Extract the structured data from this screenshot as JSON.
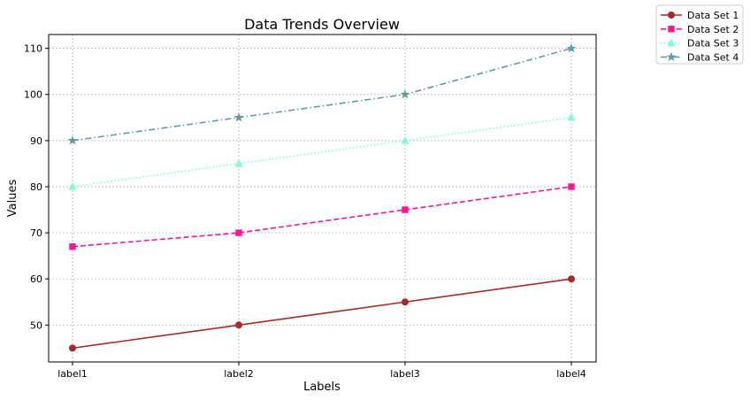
{
  "chart_data": {
    "type": "line",
    "title": "Data Trends Overview",
    "xlabel": "Labels",
    "ylabel": "Values",
    "categories": [
      "label1",
      "label2",
      "label3",
      "label4"
    ],
    "ylim": [
      42,
      113
    ],
    "yticks": [
      50,
      60,
      70,
      80,
      90,
      100,
      110
    ],
    "grid": true,
    "legend_position": "outside-top-right",
    "series": [
      {
        "name": "Data Set 1",
        "values": [
          45,
          50,
          55,
          60
        ],
        "color": "#a52a2a",
        "marker": "circle",
        "linestyle": "solid"
      },
      {
        "name": "Data Set 2",
        "values": [
          67,
          70,
          75,
          80
        ],
        "color": "#ff1493",
        "marker": "square",
        "linestyle": "dashed"
      },
      {
        "name": "Data Set 3",
        "values": [
          80,
          85,
          90,
          95
        ],
        "color": "#7fffd4",
        "marker": "triangle",
        "linestyle": "dotted"
      },
      {
        "name": "Data Set 4",
        "values": [
          90,
          95,
          100,
          110
        ],
        "color": "#5f9ea0",
        "marker": "star",
        "linestyle": "dashdot"
      }
    ]
  }
}
